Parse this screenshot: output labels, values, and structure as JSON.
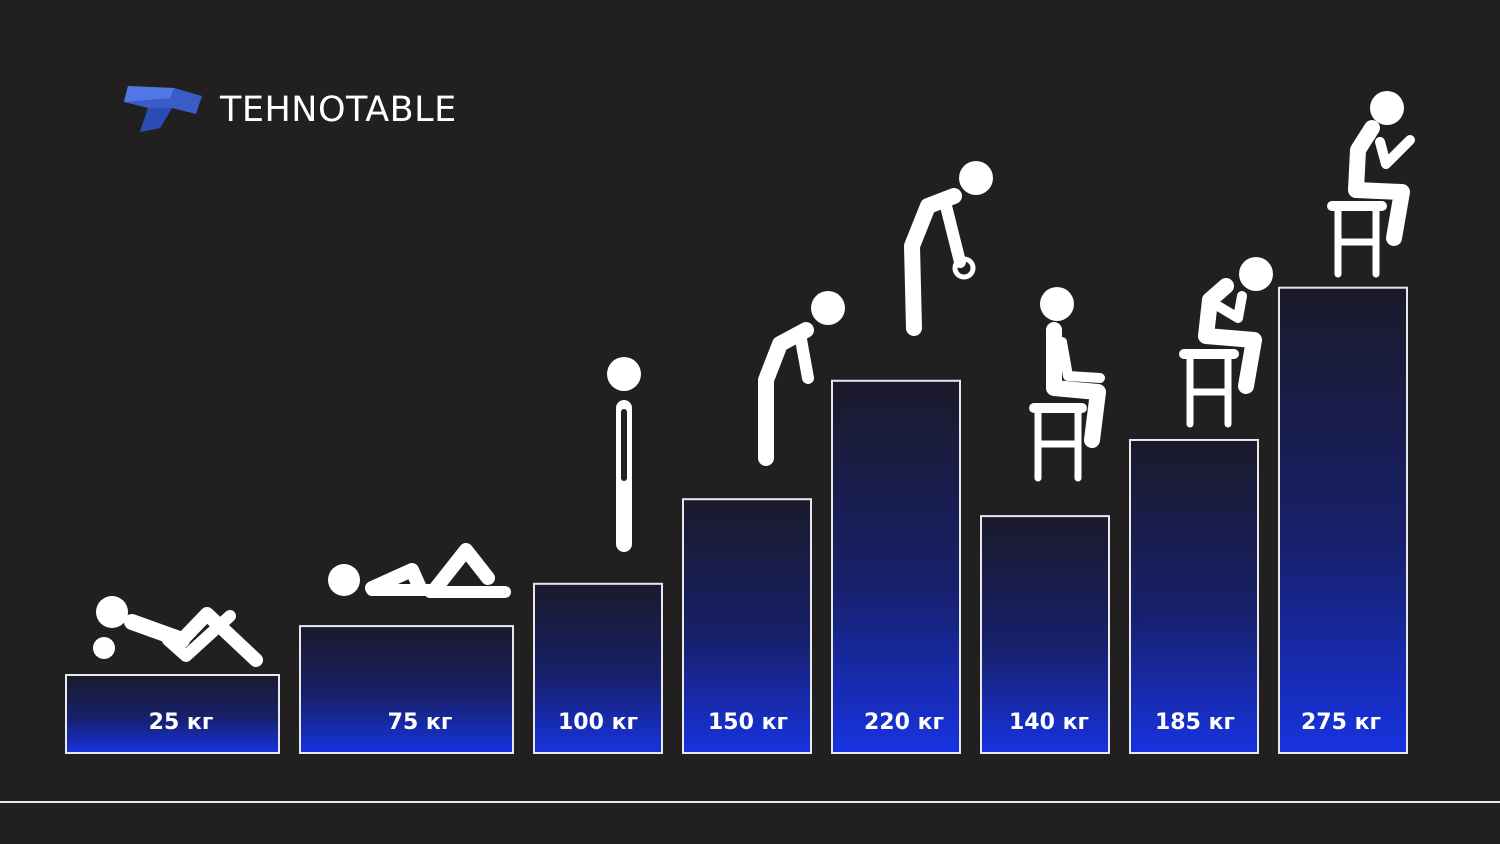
{
  "brand": {
    "name": "TEHNOTABLE",
    "logo_icon": "tehnotable-t-logo-icon",
    "logo_color": "#3a5cc9"
  },
  "colors": {
    "background": "#221f20",
    "bar_top": "#1b1a2a",
    "bar_bottom": "#1733e0",
    "bar_border": "#e8e8ec",
    "figure": "#ffffff",
    "baseline": "#e8e8ec"
  },
  "chart_data": {
    "type": "bar",
    "categories": [
      "25 кг",
      "75 кг",
      "100 кг",
      "150 кг",
      "220 кг",
      "140 кг",
      "185 кг",
      "275 кг"
    ],
    "values": [
      25,
      75,
      100,
      150,
      220,
      140,
      185,
      275
    ],
    "unit": "кг",
    "figures": [
      "lying-crunch-figure-icon",
      "lying-legs-bent-figure-icon",
      "standing-figure-icon",
      "bending-figure-icon",
      "leaning-forward-figure-icon",
      "sitting-stool-figure-icon",
      "sitting-stool-head-in-hands-figure-icon",
      "sitting-stool-thinking-figure-icon"
    ],
    "title": "",
    "xlabel": "",
    "ylabel": "",
    "grid": false,
    "legend": "none"
  }
}
